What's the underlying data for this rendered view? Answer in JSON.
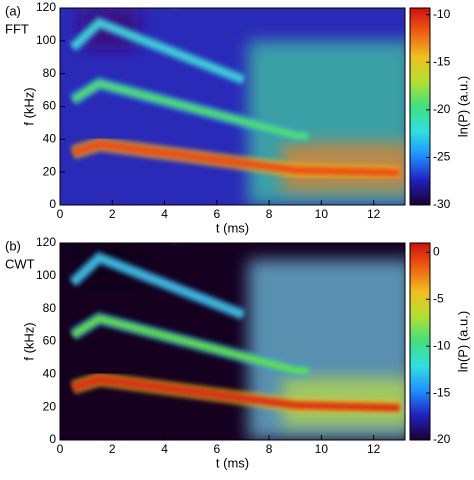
{
  "chart_data": [
    {
      "type": "heatmap",
      "panel_label": "(a)",
      "method": "FFT",
      "xlabel": "t (ms)",
      "ylabel": "f (kHz)",
      "xlim": [
        0,
        13.2
      ],
      "xticks": [
        0,
        2,
        4,
        6,
        8,
        10,
        12
      ],
      "ylim": [
        0,
        120
      ],
      "yticks": [
        0,
        20,
        40,
        60,
        80,
        100,
        120
      ],
      "colorbar_label": "ln(P) (a.u.)",
      "clim": [
        -30,
        -9.3
      ],
      "cticks": [
        -10,
        -15,
        -20,
        -25,
        -30
      ],
      "colormap": [
        "#1a0030",
        "#2020c0",
        "#1e90ff",
        "#30e0e0",
        "#40e080",
        "#b0e030",
        "#f0c020",
        "#f06010",
        "#d01010"
      ]
    },
    {
      "type": "heatmap",
      "panel_label": "(b)",
      "method": "CWT",
      "xlabel": "t (ms)",
      "ylabel": "f (kHz)",
      "xlim": [
        0,
        13.2
      ],
      "xticks": [
        0,
        2,
        4,
        6,
        8,
        10,
        12
      ],
      "ylim": [
        0,
        120
      ],
      "yticks": [
        0,
        20,
        40,
        60,
        80,
        100,
        120
      ],
      "colorbar_label": "ln(P) (a.u.)",
      "clim": [
        -20,
        1
      ],
      "cticks": [
        0,
        -5,
        -10,
        -15,
        -20
      ],
      "colormap": [
        "#1a0030",
        "#2020c0",
        "#1e90ff",
        "#30e0e0",
        "#40e080",
        "#b0e030",
        "#f0c020",
        "#f06010",
        "#d01010"
      ]
    }
  ]
}
